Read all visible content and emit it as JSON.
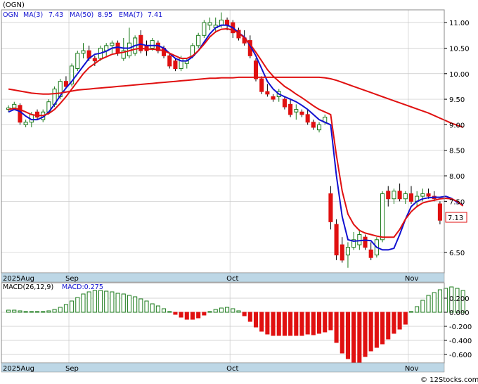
{
  "title": "(OGN)",
  "legend": {
    "ticker": "OGN",
    "ma3_label": "MA(3)",
    "ma3_value": "7.43",
    "ma50_label": "MA(50)",
    "ma50_value": "8.95",
    "ema7_label": "EMA(7)",
    "ema7_value": "7.41",
    "macd_label": "MACD(26,12,9)",
    "macd_value_label": "MACD:0.275"
  },
  "last_price_label": "7.13",
  "watermark": "© 12Stocks.com",
  "colors": {
    "up": "#1a7a1a",
    "down": "#e01010",
    "ma_short": "#1010d0",
    "ma_long": "#e01010",
    "axis_band": "#bdd7e6",
    "grid": "#c8c8c8"
  },
  "x_axis": {
    "year_label": "2025Aug",
    "months": [
      {
        "label": "Sep",
        "index": 11
      },
      {
        "label": "Oct",
        "index": 39
      },
      {
        "label": "Nov",
        "index": 70
      }
    ]
  },
  "chart_data": [
    {
      "type": "candlestick",
      "title": "(OGN)",
      "ylim": [
        6.1,
        11.25
      ],
      "yticks": [
        "11.00",
        "10.50",
        "10.00",
        "9.50",
        "9.00",
        "8.50",
        "8.00",
        "7.50",
        "6.50"
      ],
      "candles": [
        {
          "o": 9.3,
          "h": 9.38,
          "l": 9.25,
          "c": 9.33
        },
        {
          "o": 9.33,
          "h": 9.45,
          "l": 9.3,
          "c": 9.4
        },
        {
          "o": 9.38,
          "h": 9.42,
          "l": 9.0,
          "c": 9.05
        },
        {
          "o": 9.0,
          "h": 9.1,
          "l": 8.95,
          "c": 9.05
        },
        {
          "o": 9.05,
          "h": 9.25,
          "l": 8.95,
          "c": 9.2
        },
        {
          "o": 9.25,
          "h": 9.3,
          "l": 9.1,
          "c": 9.15
        },
        {
          "o": 9.1,
          "h": 9.3,
          "l": 9.05,
          "c": 9.25
        },
        {
          "o": 9.25,
          "h": 9.5,
          "l": 9.2,
          "c": 9.45
        },
        {
          "o": 9.4,
          "h": 9.75,
          "l": 9.35,
          "c": 9.7
        },
        {
          "o": 9.55,
          "h": 9.9,
          "l": 9.5,
          "c": 9.85
        },
        {
          "o": 9.85,
          "h": 9.95,
          "l": 9.7,
          "c": 9.75
        },
        {
          "o": 9.8,
          "h": 10.2,
          "l": 9.75,
          "c": 10.15
        },
        {
          "o": 10.1,
          "h": 10.45,
          "l": 10.05,
          "c": 10.4
        },
        {
          "o": 10.4,
          "h": 10.6,
          "l": 10.3,
          "c": 10.45
        },
        {
          "o": 10.45,
          "h": 10.55,
          "l": 10.25,
          "c": 10.3
        },
        {
          "o": 10.3,
          "h": 10.35,
          "l": 10.15,
          "c": 10.25
        },
        {
          "o": 10.3,
          "h": 10.55,
          "l": 10.25,
          "c": 10.5
        },
        {
          "o": 10.45,
          "h": 10.6,
          "l": 10.35,
          "c": 10.55
        },
        {
          "o": 10.55,
          "h": 10.65,
          "l": 10.4,
          "c": 10.6
        },
        {
          "o": 10.6,
          "h": 10.65,
          "l": 10.35,
          "c": 10.4
        },
        {
          "o": 10.3,
          "h": 10.7,
          "l": 10.25,
          "c": 10.45
        },
        {
          "o": 10.35,
          "h": 10.9,
          "l": 10.3,
          "c": 10.6
        },
        {
          "o": 10.4,
          "h": 10.75,
          "l": 10.35,
          "c": 10.7
        },
        {
          "o": 10.75,
          "h": 10.85,
          "l": 10.4,
          "c": 10.45
        },
        {
          "o": 10.55,
          "h": 10.65,
          "l": 10.35,
          "c": 10.45
        },
        {
          "o": 10.5,
          "h": 10.7,
          "l": 10.45,
          "c": 10.65
        },
        {
          "o": 10.6,
          "h": 10.65,
          "l": 10.4,
          "c": 10.45
        },
        {
          "o": 10.5,
          "h": 10.55,
          "l": 10.3,
          "c": 10.35
        },
        {
          "o": 10.35,
          "h": 10.4,
          "l": 10.1,
          "c": 10.15
        },
        {
          "o": 10.25,
          "h": 10.3,
          "l": 10.05,
          "c": 10.1
        },
        {
          "o": 10.1,
          "h": 10.35,
          "l": 10.05,
          "c": 10.3
        },
        {
          "o": 10.2,
          "h": 10.3,
          "l": 10.1,
          "c": 10.25
        },
        {
          "o": 10.35,
          "h": 10.6,
          "l": 10.3,
          "c": 10.55
        },
        {
          "o": 10.55,
          "h": 10.8,
          "l": 10.5,
          "c": 10.75
        },
        {
          "o": 10.75,
          "h": 11.05,
          "l": 10.7,
          "c": 11.0
        },
        {
          "o": 10.95,
          "h": 11.1,
          "l": 10.85,
          "c": 11.0
        },
        {
          "o": 10.9,
          "h": 11.1,
          "l": 10.8,
          "c": 10.95
        },
        {
          "o": 10.95,
          "h": 11.2,
          "l": 10.9,
          "c": 11.05
        },
        {
          "o": 11.05,
          "h": 11.1,
          "l": 10.85,
          "c": 10.95
        },
        {
          "o": 11.0,
          "h": 11.05,
          "l": 10.7,
          "c": 10.8
        },
        {
          "o": 10.85,
          "h": 10.9,
          "l": 10.65,
          "c": 10.7
        },
        {
          "o": 10.7,
          "h": 10.85,
          "l": 10.55,
          "c": 10.6
        },
        {
          "o": 10.65,
          "h": 10.75,
          "l": 10.3,
          "c": 10.35
        },
        {
          "o": 10.25,
          "h": 10.3,
          "l": 9.85,
          "c": 9.9
        },
        {
          "o": 9.9,
          "h": 9.95,
          "l": 9.6,
          "c": 9.65
        },
        {
          "o": 9.65,
          "h": 9.8,
          "l": 9.55,
          "c": 9.6
        },
        {
          "o": 9.55,
          "h": 9.6,
          "l": 9.45,
          "c": 9.5
        },
        {
          "o": 9.55,
          "h": 9.7,
          "l": 9.45,
          "c": 9.65
        },
        {
          "o": 9.5,
          "h": 9.55,
          "l": 9.3,
          "c": 9.35
        },
        {
          "o": 9.4,
          "h": 9.5,
          "l": 9.15,
          "c": 9.2
        },
        {
          "o": 9.25,
          "h": 9.4,
          "l": 9.1,
          "c": 9.3
        },
        {
          "o": 9.25,
          "h": 9.3,
          "l": 9.15,
          "c": 9.2
        },
        {
          "o": 9.2,
          "h": 9.3,
          "l": 9.0,
          "c": 9.05
        },
        {
          "o": 9.05,
          "h": 9.1,
          "l": 8.9,
          "c": 8.95
        },
        {
          "o": 8.9,
          "h": 9.05,
          "l": 8.85,
          "c": 9.0
        },
        {
          "o": 9.05,
          "h": 9.2,
          "l": 9.0,
          "c": 9.15
        },
        {
          "o": 7.65,
          "h": 7.8,
          "l": 6.95,
          "c": 7.1
        },
        {
          "o": 7.05,
          "h": 7.15,
          "l": 6.35,
          "c": 6.45
        },
        {
          "o": 6.65,
          "h": 6.8,
          "l": 6.3,
          "c": 6.35
        },
        {
          "o": 6.45,
          "h": 6.7,
          "l": 6.2,
          "c": 6.6
        },
        {
          "o": 6.6,
          "h": 6.9,
          "l": 6.55,
          "c": 6.75
        },
        {
          "o": 6.65,
          "h": 6.95,
          "l": 6.55,
          "c": 6.85
        },
        {
          "o": 6.8,
          "h": 6.85,
          "l": 6.55,
          "c": 6.6
        },
        {
          "o": 6.55,
          "h": 6.7,
          "l": 6.35,
          "c": 6.4
        },
        {
          "o": 6.45,
          "h": 6.8,
          "l": 6.4,
          "c": 6.75
        },
        {
          "o": 6.75,
          "h": 7.7,
          "l": 6.7,
          "c": 7.65
        },
        {
          "o": 7.7,
          "h": 7.8,
          "l": 7.4,
          "c": 7.55
        },
        {
          "o": 7.55,
          "h": 7.75,
          "l": 7.45,
          "c": 7.7
        },
        {
          "o": 7.7,
          "h": 7.85,
          "l": 7.5,
          "c": 7.55
        },
        {
          "o": 7.55,
          "h": 7.7,
          "l": 7.45,
          "c": 7.65
        },
        {
          "o": 7.65,
          "h": 7.8,
          "l": 7.45,
          "c": 7.5
        },
        {
          "o": 7.5,
          "h": 7.7,
          "l": 7.4,
          "c": 7.6
        },
        {
          "o": 7.6,
          "h": 7.75,
          "l": 7.5,
          "c": 7.65
        },
        {
          "o": 7.65,
          "h": 7.75,
          "l": 7.55,
          "c": 7.6
        },
        {
          "o": 7.6,
          "h": 7.7,
          "l": 7.5,
          "c": 7.55
        },
        {
          "o": 7.45,
          "h": 7.5,
          "l": 7.05,
          "c": 7.13
        }
      ],
      "series": [
        {
          "name": "MA(3)",
          "values": [
            9.25,
            9.3,
            9.26,
            9.17,
            9.1,
            9.1,
            9.15,
            9.25,
            9.4,
            9.57,
            9.72,
            9.85,
            10.0,
            10.15,
            10.3,
            10.38,
            10.4,
            10.44,
            10.5,
            10.52,
            10.5,
            10.5,
            10.55,
            10.58,
            10.55,
            10.55,
            10.55,
            10.5,
            10.4,
            10.3,
            10.25,
            10.25,
            10.33,
            10.45,
            10.62,
            10.78,
            10.9,
            10.95,
            10.95,
            10.9,
            10.8,
            10.72,
            10.55,
            10.35,
            10.1,
            9.85,
            9.7,
            9.6,
            9.55,
            9.5,
            9.45,
            9.38,
            9.3,
            9.2,
            9.1,
            9.05,
            9.0,
            8.0,
            7.2,
            6.75,
            6.72,
            6.73,
            6.74,
            6.73,
            6.6,
            6.55,
            6.55,
            6.58,
            6.85,
            7.15,
            7.4,
            7.5,
            7.55,
            7.57,
            7.58,
            7.58,
            7.6,
            7.56,
            7.48,
            7.43
          ]
        },
        {
          "name": "EMA(7)",
          "values": [
            9.3,
            9.32,
            9.3,
            9.25,
            9.2,
            9.18,
            9.18,
            9.22,
            9.3,
            9.42,
            9.55,
            9.7,
            9.85,
            10.0,
            10.12,
            10.2,
            10.28,
            10.33,
            10.38,
            10.4,
            10.42,
            10.45,
            10.48,
            10.5,
            10.48,
            10.48,
            10.47,
            10.45,
            10.4,
            10.35,
            10.3,
            10.3,
            10.35,
            10.45,
            10.58,
            10.72,
            10.82,
            10.87,
            10.88,
            10.85,
            10.8,
            10.7,
            10.58,
            10.42,
            10.25,
            10.08,
            9.95,
            9.85,
            9.75,
            9.68,
            9.6,
            9.53,
            9.45,
            9.37,
            9.3,
            9.25,
            9.2,
            8.4,
            7.7,
            7.25,
            7.05,
            6.93,
            6.88,
            6.85,
            6.82,
            6.8,
            6.8,
            6.8,
            6.95,
            7.15,
            7.3,
            7.4,
            7.47,
            7.5,
            7.52,
            7.55,
            7.56,
            7.55,
            7.5,
            7.41
          ]
        },
        {
          "name": "MA(50)",
          "start_index": 0,
          "values": [
            9.7,
            9.68,
            9.66,
            9.64,
            9.62,
            9.61,
            9.6,
            9.6,
            9.61,
            9.62,
            9.64,
            9.66,
            9.68,
            9.69,
            9.7,
            9.71,
            9.72,
            9.73,
            9.74,
            9.75,
            9.76,
            9.77,
            9.78,
            9.79,
            9.8,
            9.81,
            9.82,
            9.83,
            9.84,
            9.85,
            9.86,
            9.87,
            9.88,
            9.89,
            9.9,
            9.91,
            9.91,
            9.92,
            9.92,
            9.92,
            9.93,
            9.93,
            9.93,
            9.93,
            9.93,
            9.93,
            9.93,
            9.93,
            9.93,
            9.93,
            9.93,
            9.93,
            9.93,
            9.93,
            9.93,
            9.92,
            9.9,
            9.87,
            9.83,
            9.79,
            9.75,
            9.71,
            9.67,
            9.63,
            9.59,
            9.55,
            9.51,
            9.47,
            9.43,
            9.39,
            9.35,
            9.31,
            9.27,
            9.23,
            9.18,
            9.13,
            9.08,
            9.03,
            8.99,
            8.95
          ]
        }
      ]
    },
    {
      "type": "bar",
      "title": "MACD(26,12,9)",
      "ylim": [
        -0.72,
        0.42
      ],
      "yticks": [
        "0.200",
        "0.000",
        "-0.200",
        "-0.400",
        "-0.600"
      ],
      "values": [
        0.03,
        0.03,
        0.02,
        0.01,
        0.01,
        0.01,
        0.01,
        0.02,
        0.04,
        0.07,
        0.11,
        0.16,
        0.21,
        0.26,
        0.29,
        0.31,
        0.31,
        0.3,
        0.29,
        0.27,
        0.26,
        0.24,
        0.22,
        0.19,
        0.16,
        0.12,
        0.09,
        0.05,
        0.01,
        -0.03,
        -0.07,
        -0.1,
        -0.1,
        -0.08,
        -0.04,
        0.01,
        0.04,
        0.06,
        0.07,
        0.05,
        0.02,
        -0.05,
        -0.13,
        -0.21,
        -0.27,
        -0.31,
        -0.33,
        -0.33,
        -0.33,
        -0.33,
        -0.33,
        -0.33,
        -0.31,
        -0.32,
        -0.3,
        -0.28,
        -0.25,
        -0.43,
        -0.58,
        -0.66,
        -0.73,
        -0.73,
        -0.63,
        -0.55,
        -0.5,
        -0.45,
        -0.38,
        -0.3,
        -0.24,
        -0.17,
        0.01,
        0.08,
        0.17,
        0.24,
        0.28,
        0.32,
        0.34,
        0.36,
        0.34,
        0.31
      ]
    }
  ]
}
